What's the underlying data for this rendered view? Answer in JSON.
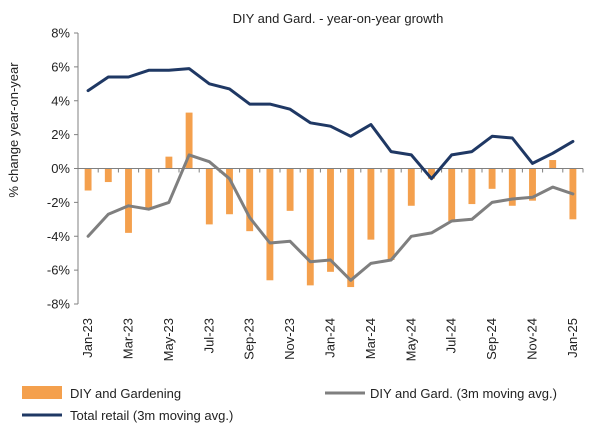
{
  "chart_data": {
    "type": "bar+line",
    "title": "DIY and Gard. - year-on-year  growth",
    "ylabel": "% change year-on-year",
    "ylim": [
      -8,
      8
    ],
    "yticks": [
      -8,
      -6,
      -4,
      -2,
      0,
      2,
      4,
      6,
      8
    ],
    "ytick_labels": [
      "-8%",
      "-6%",
      "-4%",
      "-2%",
      "0%",
      "2%",
      "4%",
      "6%",
      "8%"
    ],
    "x": [
      "Jan-23",
      "Feb-23",
      "Mar-23",
      "Apr-23",
      "May-23",
      "Jun-23",
      "Jul-23",
      "Aug-23",
      "Sep-23",
      "Oct-23",
      "Nov-23",
      "Dec-23",
      "Jan-24",
      "Feb-24",
      "Mar-24",
      "Apr-24",
      "May-24",
      "Jun-24",
      "Jul-24",
      "Aug-24",
      "Sep-24",
      "Oct-24",
      "Nov-24",
      "Dec-24",
      "Jan-25"
    ],
    "xtick_labels": [
      "Jan-23",
      "Mar-23",
      "May-23",
      "Jul-23",
      "Sep-23",
      "Nov-23",
      "Jan-24",
      "Mar-24",
      "May-24",
      "Jul-24",
      "Sep-24",
      "Nov-24",
      "Jan-25"
    ],
    "series": [
      {
        "name": "DIY and Gardening",
        "type": "bar",
        "color": "#F4A04D",
        "values": [
          -1.3,
          -0.8,
          -3.8,
          -2.4,
          0.7,
          3.3,
          -3.3,
          -2.7,
          -3.7,
          -6.6,
          -2.5,
          -6.9,
          -6.1,
          -7.0,
          -4.2,
          -5.4,
          -2.2,
          -0.6,
          -3.1,
          -2.1,
          -1.2,
          -2.2,
          -1.9,
          0.5,
          -3.0
        ]
      },
      {
        "name": "DIY and Gard. (3m moving avg.)",
        "type": "line",
        "color": "#7F7F7F",
        "values": [
          -4.0,
          -2.7,
          -2.2,
          -2.4,
          -2.0,
          0.8,
          0.4,
          -0.6,
          -2.9,
          -4.4,
          -4.3,
          -5.5,
          -5.4,
          -6.6,
          -5.6,
          -5.4,
          -4.0,
          -3.8,
          -3.1,
          -3.0,
          -2.0,
          -1.8,
          -1.7,
          -1.1,
          -1.5
        ]
      },
      {
        "name": "Total retail (3m moving avg.)",
        "type": "line",
        "color": "#1F3864",
        "values": [
          4.6,
          5.4,
          5.4,
          5.8,
          5.8,
          5.9,
          5.0,
          4.7,
          3.8,
          3.8,
          3.5,
          2.7,
          2.5,
          1.9,
          2.6,
          1.0,
          0.8,
          -0.6,
          0.8,
          1.0,
          1.9,
          1.8,
          0.3,
          0.9,
          1.6
        ]
      }
    ],
    "grid": false,
    "legend": "bottom"
  }
}
